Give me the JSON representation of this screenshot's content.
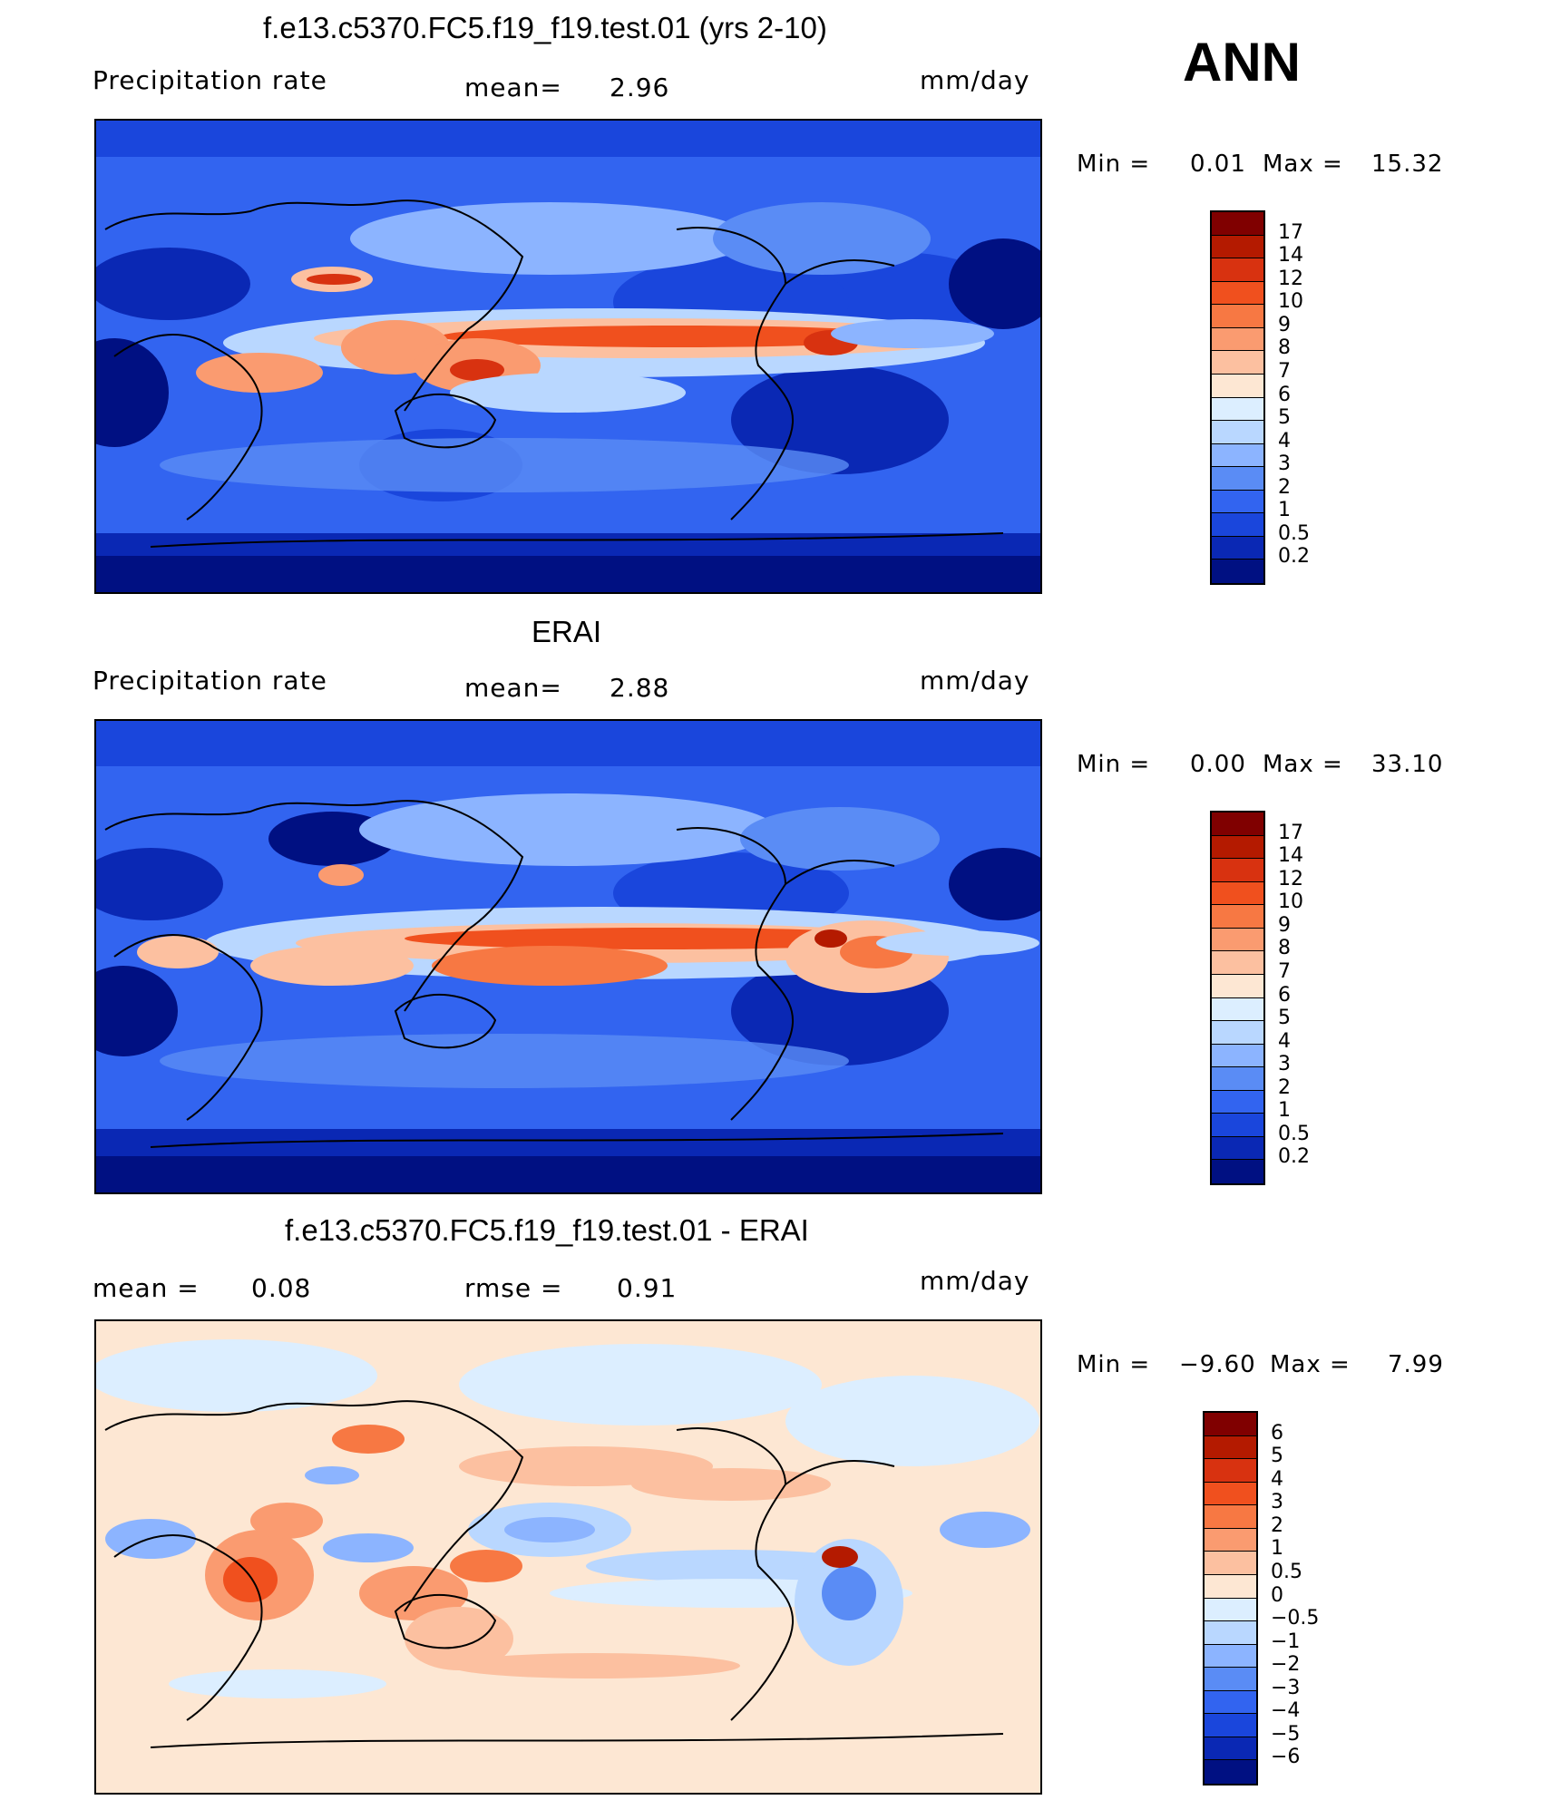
{
  "season": "ANN",
  "panels": [
    {
      "title": "f.e13.c5370.FC5.f19_f19.test.01 (yrs 2-10)",
      "left_label": "Precipitation  rate",
      "center_label": "mean=",
      "center_value": "2.96",
      "units": "mm/day",
      "min_label": "Min  =",
      "min_value": "0.01",
      "max_label": "Max  =",
      "max_value": "15.32",
      "colorbar": {
        "ticks": [
          "17",
          "14",
          "12",
          "10",
          "9",
          "8",
          "7",
          "6",
          "5",
          "4",
          "3",
          "2",
          "1",
          "0.5",
          "0.2"
        ],
        "colors": [
          "#800000",
          "#b41a00",
          "#d83210",
          "#f0501e",
          "#f77843",
          "#fa9b70",
          "#fcc0a0",
          "#fde7d3",
          "#dceeff",
          "#b9d7ff",
          "#8cb4ff",
          "#5a8cf5",
          "#3264f0",
          "#1a46dc",
          "#0a28b4",
          "#001082"
        ]
      }
    },
    {
      "title": "ERAI",
      "left_label": "Precipitation  rate",
      "center_label": "mean=",
      "center_value": "2.88",
      "units": "mm/day",
      "min_label": "Min  =",
      "min_value": "0.00",
      "max_label": "Max  =",
      "max_value": "33.10",
      "colorbar": {
        "ticks": [
          "17",
          "14",
          "12",
          "10",
          "9",
          "8",
          "7",
          "6",
          "5",
          "4",
          "3",
          "2",
          "1",
          "0.5",
          "0.2"
        ],
        "colors": [
          "#800000",
          "#b41a00",
          "#d83210",
          "#f0501e",
          "#f77843",
          "#fa9b70",
          "#fcc0a0",
          "#fde7d3",
          "#dceeff",
          "#b9d7ff",
          "#8cb4ff",
          "#5a8cf5",
          "#3264f0",
          "#1a46dc",
          "#0a28b4",
          "#001082"
        ]
      }
    },
    {
      "title": "f.e13.c5370.FC5.f19_f19.test.01 - ERAI",
      "left_label": "mean  =",
      "left_value": "0.08",
      "center_label": "rmse  =",
      "center_value": "0.91",
      "units": "mm/day",
      "min_label": "Min  =",
      "min_value": "−9.60",
      "max_label": "Max  =",
      "max_value": "7.99",
      "colorbar": {
        "ticks": [
          "6",
          "5",
          "4",
          "3",
          "2",
          "1",
          "0.5",
          "0",
          "−0.5",
          "−1",
          "−2",
          "−3",
          "−4",
          "−5",
          "−6"
        ],
        "colors": [
          "#800000",
          "#b41a00",
          "#d83210",
          "#f0501e",
          "#f77843",
          "#fa9b70",
          "#fcc0a0",
          "#fde7d3",
          "#dceeff",
          "#b9d7ff",
          "#8cb4ff",
          "#5a8cf5",
          "#3264f0",
          "#1a46dc",
          "#0a28b4",
          "#001082"
        ]
      }
    }
  ]
}
